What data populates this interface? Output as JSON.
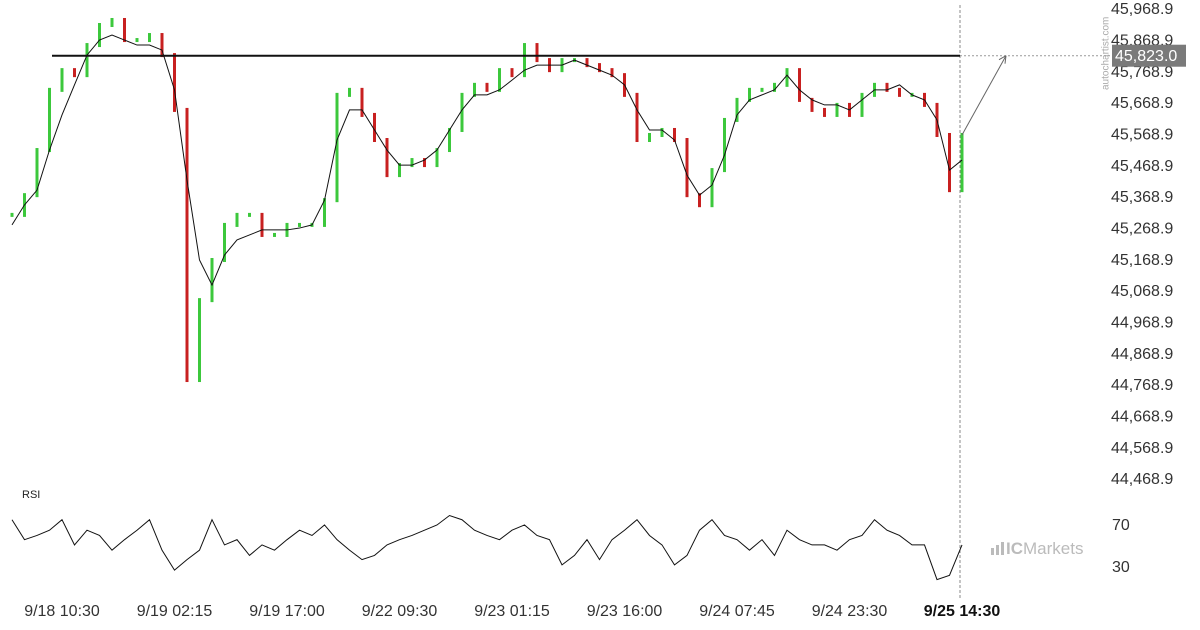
{
  "chart_data": {
    "type": "price-rsi",
    "categories": [
      null,
      null,
      null,
      null,
      "9/18 10:30",
      null,
      null,
      null,
      null,
      null,
      null,
      null,
      null,
      "9/19 02:15",
      null,
      null,
      null,
      null,
      null,
      null,
      null,
      null,
      "9/19 17:00",
      null,
      null,
      null,
      null,
      null,
      null,
      null,
      null,
      "9/22 09:30",
      null,
      null,
      null,
      null,
      null,
      null,
      null,
      null,
      "9/23 01:15",
      null,
      null,
      null,
      null,
      null,
      null,
      null,
      null,
      "9/23 16:00",
      null,
      null,
      null,
      null,
      null,
      null,
      null,
      null,
      "9/24 07:45",
      null,
      null,
      null,
      null,
      null,
      null,
      null,
      null,
      "9/24 23:30",
      null,
      null,
      null,
      null,
      null,
      null,
      null,
      null,
      "9/25 14:30"
    ],
    "series": [
      {
        "name": "Price",
        "up_color": "#3cc83c",
        "down_color": "#c82020",
        "values": [
          45315,
          45378,
          45522,
          45714,
          45777,
          45761,
          45857,
          45921,
          45937,
          45873,
          45873,
          45889,
          45825,
          45650,
          44788,
          45043,
          45171,
          45283,
          45315,
          45315,
          45251,
          45251,
          45283,
          45283,
          45283,
          45362,
          45698,
          45714,
          45634,
          45554,
          45442,
          45474,
          45490,
          45474,
          45522,
          45586,
          45698,
          45730,
          45714,
          45777,
          45761,
          45857,
          45809,
          45777,
          45809,
          45809,
          45793,
          45777,
          45761,
          45698,
          45554,
          45570,
          45586,
          45554,
          45378,
          45346,
          45458,
          45618,
          45682,
          45714,
          45714,
          45730,
          45777,
          45682,
          45650,
          45634,
          45666,
          45634,
          45698,
          45730,
          45714,
          45698,
          45698,
          45666,
          45570,
          45394,
          45570
        ]
      },
      {
        "name": "Moving average",
        "color": "#111111",
        "values": [
          45283,
          45347,
          45394,
          45522,
          45634,
          45730,
          45825,
          45873,
          45889,
          45873,
          45857,
          45857,
          45841,
          45714,
          45426,
          45171,
          45091,
          45187,
          45235,
          45251,
          45267,
          45267,
          45267,
          45273,
          45283,
          45362,
          45554,
          45650,
          45650,
          45586,
          45522,
          45474,
          45474,
          45490,
          45522,
          45586,
          45650,
          45698,
          45698,
          45714,
          45745,
          45777,
          45793,
          45793,
          45793,
          45809,
          45793,
          45777,
          45761,
          45730,
          45650,
          45586,
          45586,
          45554,
          45442,
          45378,
          45410,
          45506,
          45634,
          45682,
          45698,
          45714,
          45761,
          45714,
          45682,
          45666,
          45666,
          45650,
          45682,
          45714,
          45714,
          45730,
          45698,
          45682,
          45618,
          45458,
          45490
        ]
      }
    ],
    "level": {
      "value": 45823.0,
      "label": "45,823.0"
    },
    "ylim": [
      44453,
      46000.8
    ],
    "yticks": [
      {
        "value": 45968.9,
        "label": "45,968.9"
      },
      {
        "value": 45868.9,
        "label": "45,868.9"
      },
      {
        "value": 45768.9,
        "label": "45,768.9"
      },
      {
        "value": 45668.9,
        "label": "45,668.9"
      },
      {
        "value": 45568.9,
        "label": "45,568.9"
      },
      {
        "value": 45468.9,
        "label": "45,468.9"
      },
      {
        "value": 45368.9,
        "label": "45,368.9"
      },
      {
        "value": 45268.9,
        "label": "45,268.9"
      },
      {
        "value": 45168.9,
        "label": "45,168.9"
      },
      {
        "value": 45068.9,
        "label": "45,068.9"
      },
      {
        "value": 44968.9,
        "label": "44,968.9"
      },
      {
        "value": 44868.9,
        "label": "44,868.9"
      },
      {
        "value": 44768.9,
        "label": "44,768.9"
      },
      {
        "value": 44668.9,
        "label": "44,668.9"
      },
      {
        "value": 44568.9,
        "label": "44,568.9"
      },
      {
        "value": 44468.9,
        "label": "44,468.9"
      }
    ],
    "rsi": {
      "label": "RSI",
      "color": "#111111",
      "values": [
        76,
        57,
        61,
        66,
        76,
        52,
        66,
        61,
        47,
        57,
        66,
        76,
        47,
        28,
        38,
        47,
        76,
        52,
        57,
        42,
        52,
        47,
        57,
        66,
        61,
        71,
        57,
        47,
        38,
        42,
        52,
        57,
        61,
        66,
        71,
        80,
        76,
        66,
        61,
        57,
        66,
        71,
        61,
        57,
        33,
        42,
        57,
        38,
        57,
        66,
        76,
        61,
        52,
        33,
        42,
        66,
        76,
        61,
        57,
        47,
        57,
        42,
        66,
        57,
        52,
        52,
        47,
        57,
        61,
        76,
        66,
        61,
        52,
        52,
        19,
        23,
        52
      ],
      "ylim": [
        4.3,
        104.3
      ],
      "yticks": [
        70,
        30
      ]
    },
    "watermark": "autochartist.com",
    "brand": {
      "prefix": "IC",
      "suffix": "Markets"
    }
  }
}
